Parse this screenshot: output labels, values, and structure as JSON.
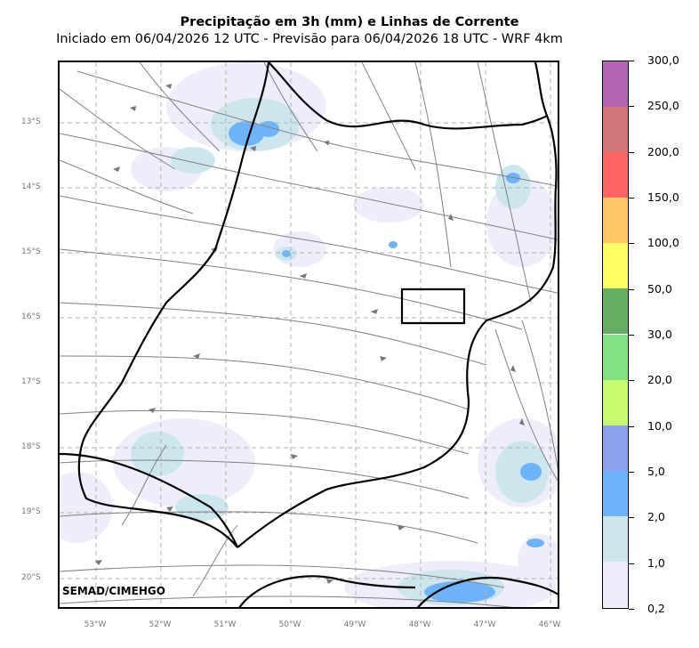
{
  "title": {
    "line1": "Precipitação em 3h (mm) e Linhas de Corrente",
    "line2": "Iniciado em 06/04/2026 12 UTC - Previsão para 06/04/2026 18 UTC - WRF 4km"
  },
  "credit": "SEMAD/CIMEHGO",
  "map": {
    "lat_labels": [
      "13°S",
      "14°S",
      "15°S",
      "16°S",
      "17°S",
      "18°S",
      "19°S",
      "20°S"
    ],
    "lon_labels": [
      "53°W",
      "52°W",
      "51°W",
      "50°W",
      "49°W",
      "48°W",
      "47°W",
      "46°W"
    ],
    "gridlines": true,
    "streamline_color": "#808080",
    "boundary_color": "#000000"
  },
  "colorbar": {
    "labels": [
      "0,2",
      "1,0",
      "2,0",
      "5,0",
      "10,0",
      "20,0",
      "30,0",
      "50,0",
      "100,0",
      "150,0",
      "200,0",
      "250,0",
      "300,0"
    ],
    "colors": [
      "#eeeefa",
      "#cde6ee",
      "#6eb4fa",
      "#8ca0ec",
      "#c8fa6e",
      "#82e182",
      "#64af64",
      "#ffff64",
      "#ffc864",
      "#ff6464",
      "#d27878",
      "#b464b4"
    ]
  }
}
